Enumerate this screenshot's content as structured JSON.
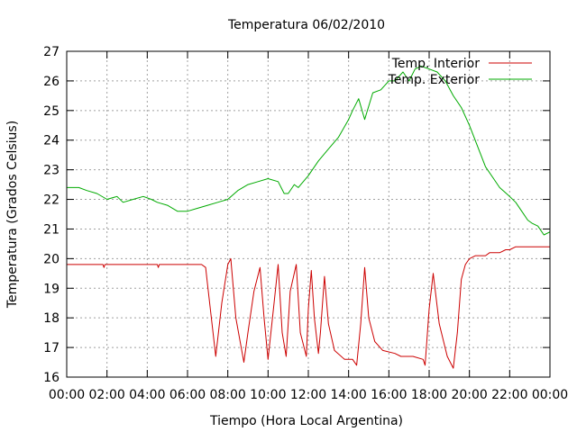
{
  "chart_data": {
    "type": "line",
    "title": "Temperatura 06/02/2010",
    "xlabel": "Tiempo (Hora Local Argentina)",
    "ylabel": "Temperatura (Grados Celsius)",
    "xlim": [
      0,
      24
    ],
    "ylim": [
      16,
      27
    ],
    "x_ticks": [
      "00:00",
      "02:00",
      "04:00",
      "06:00",
      "08:00",
      "10:00",
      "12:00",
      "14:00",
      "16:00",
      "18:00",
      "20:00",
      "22:00",
      "00:00"
    ],
    "y_ticks": [
      "16",
      "17",
      "18",
      "19",
      "20",
      "21",
      "22",
      "23",
      "24",
      "25",
      "26",
      "27"
    ],
    "grid": true,
    "legend_position": "top-right",
    "x_unit": "hours",
    "series": [
      {
        "name": "Temp. Interior",
        "color": "#cc0000",
        "x": [
          0,
          1.8,
          1.85,
          1.9,
          3,
          4.5,
          4.55,
          4.6,
          6,
          6.7,
          6.9,
          7,
          7.4,
          7.7,
          8,
          8.15,
          8.4,
          8.8,
          9,
          9.3,
          9.6,
          9.8,
          10,
          10.3,
          10.5,
          10.7,
          10.9,
          11.1,
          11.4,
          11.6,
          11.9,
          12,
          12.15,
          12.3,
          12.5,
          12.6,
          12.8,
          13,
          13.3,
          13.8,
          14.2,
          14.4,
          14.6,
          14.8,
          15,
          15.3,
          15.7,
          16.3,
          16.6,
          17.2,
          17.7,
          17.8,
          18,
          18.2,
          18.5,
          18.9,
          19.2,
          19.4,
          19.6,
          19.8,
          20,
          20.3,
          20.8,
          21,
          21.5,
          21.8,
          22,
          22.3,
          23,
          24
        ],
        "y": [
          19.8,
          19.8,
          19.7,
          19.8,
          19.8,
          19.8,
          19.7,
          19.8,
          19.8,
          19.8,
          19.7,
          19.1,
          16.7,
          18.5,
          19.8,
          20,
          18,
          16.5,
          17.5,
          18.9,
          19.7,
          18,
          16.6,
          18.5,
          19.8,
          17.5,
          16.7,
          18.9,
          19.8,
          17.5,
          16.7,
          18.3,
          19.6,
          18,
          16.8,
          17.5,
          19.4,
          17.8,
          16.9,
          16.6,
          16.6,
          16.4,
          17.8,
          19.7,
          18,
          17.2,
          16.9,
          16.8,
          16.7,
          16.7,
          16.6,
          16.4,
          18.3,
          19.5,
          17.8,
          16.7,
          16.3,
          17.5,
          19.3,
          19.8,
          20,
          20.1,
          20.1,
          20.2,
          20.2,
          20.3,
          20.3,
          20.4,
          20.4,
          20.4
        ]
      },
      {
        "name": "Temp. Exterior",
        "color": "#00aa00",
        "x": [
          0,
          0.6,
          1,
          1.5,
          2,
          2.5,
          2.8,
          3.3,
          3.8,
          4.2,
          4.5,
          5,
          5.5,
          6,
          6.5,
          7,
          7.5,
          8,
          8.5,
          9,
          9.5,
          10,
          10.5,
          10.8,
          11,
          11.3,
          11.5,
          12,
          12.5,
          13,
          13.5,
          14,
          14.2,
          14.5,
          14.8,
          15.2,
          15.6,
          16,
          16.3,
          16.7,
          17,
          17.3,
          17.6,
          18,
          18.4,
          18.8,
          19.2,
          19.6,
          20,
          20.4,
          20.8,
          21.2,
          21.5,
          22,
          22.3,
          22.6,
          22.9,
          23.1,
          23.4,
          23.7,
          24
        ],
        "y": [
          22.4,
          22.4,
          22.3,
          22.2,
          22,
          22.1,
          21.9,
          22,
          22.1,
          22,
          21.9,
          21.8,
          21.6,
          21.6,
          21.7,
          21.8,
          21.9,
          22,
          22.3,
          22.5,
          22.6,
          22.7,
          22.6,
          22.2,
          22.2,
          22.5,
          22.4,
          22.8,
          23.3,
          23.7,
          24.1,
          24.7,
          25,
          25.4,
          24.7,
          25.6,
          25.7,
          26,
          26,
          26.3,
          26,
          26.4,
          26.5,
          26.4,
          26.3,
          26,
          25.5,
          25.1,
          24.5,
          23.8,
          23.1,
          22.7,
          22.4,
          22.1,
          21.9,
          21.6,
          21.3,
          21.2,
          21.1,
          20.8,
          20.9
        ]
      }
    ]
  }
}
